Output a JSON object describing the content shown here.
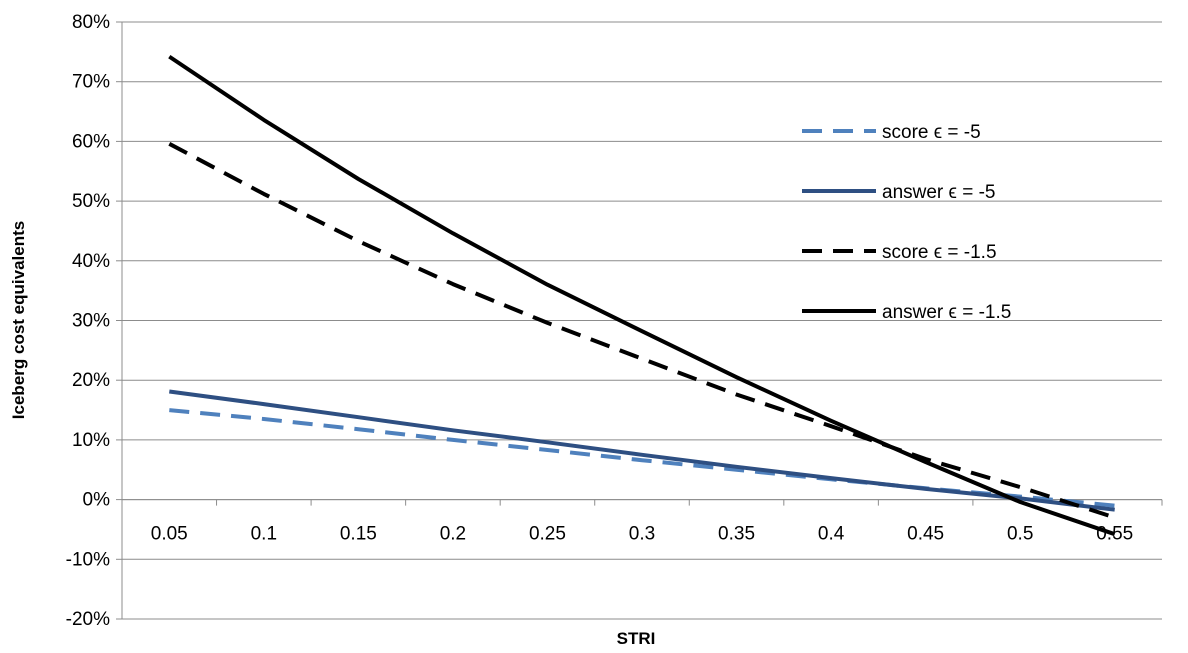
{
  "chart_data": {
    "type": "line",
    "title": "",
    "xlabel": "STRI",
    "ylabel": "Iceberg cost equivalents",
    "x": [
      0.05,
      0.1,
      0.15,
      0.2,
      0.25,
      0.3,
      0.35,
      0.4,
      0.45,
      0.5,
      0.55
    ],
    "x_tick_labels": [
      "0.05",
      "0.1",
      "0.15",
      "0.2",
      "0.25",
      "0.3",
      "0.35",
      "0.4",
      "0.45",
      "0.5",
      "0.55"
    ],
    "y_tick_labels": [
      "-20%",
      "-10%",
      "0%",
      "10%",
      "20%",
      "30%",
      "40%",
      "50%",
      "60%",
      "70%",
      "80%"
    ],
    "ylim": [
      -0.2,
      0.8
    ],
    "y_format": "percent",
    "grid": "horizontal",
    "legend_position": "right",
    "series": [
      {
        "name": "score ϵ = -5",
        "color": "#4f81bd",
        "dash": "dashed",
        "values": [
          0.15,
          0.135,
          0.118,
          0.1,
          0.083,
          0.066,
          0.05,
          0.034,
          0.019,
          0.005,
          -0.01
        ]
      },
      {
        "name": "answer ϵ = -5",
        "color": "#2e4f82",
        "dash": "solid",
        "values": [
          0.181,
          0.16,
          0.138,
          0.116,
          0.096,
          0.075,
          0.055,
          0.036,
          0.018,
          0.002,
          -0.017
        ]
      },
      {
        "name": "score ϵ = -1.5",
        "color": "#000000",
        "dash": "dashed",
        "values": [
          0.596,
          0.512,
          0.433,
          0.361,
          0.296,
          0.236,
          0.176,
          0.123,
          0.068,
          0.021,
          -0.03
        ]
      },
      {
        "name": "answer ϵ = -1.5",
        "color": "#000000",
        "dash": "solid",
        "values": [
          0.742,
          0.636,
          0.537,
          0.446,
          0.36,
          0.282,
          0.205,
          0.132,
          0.063,
          -0.004,
          -0.058
        ]
      }
    ]
  }
}
